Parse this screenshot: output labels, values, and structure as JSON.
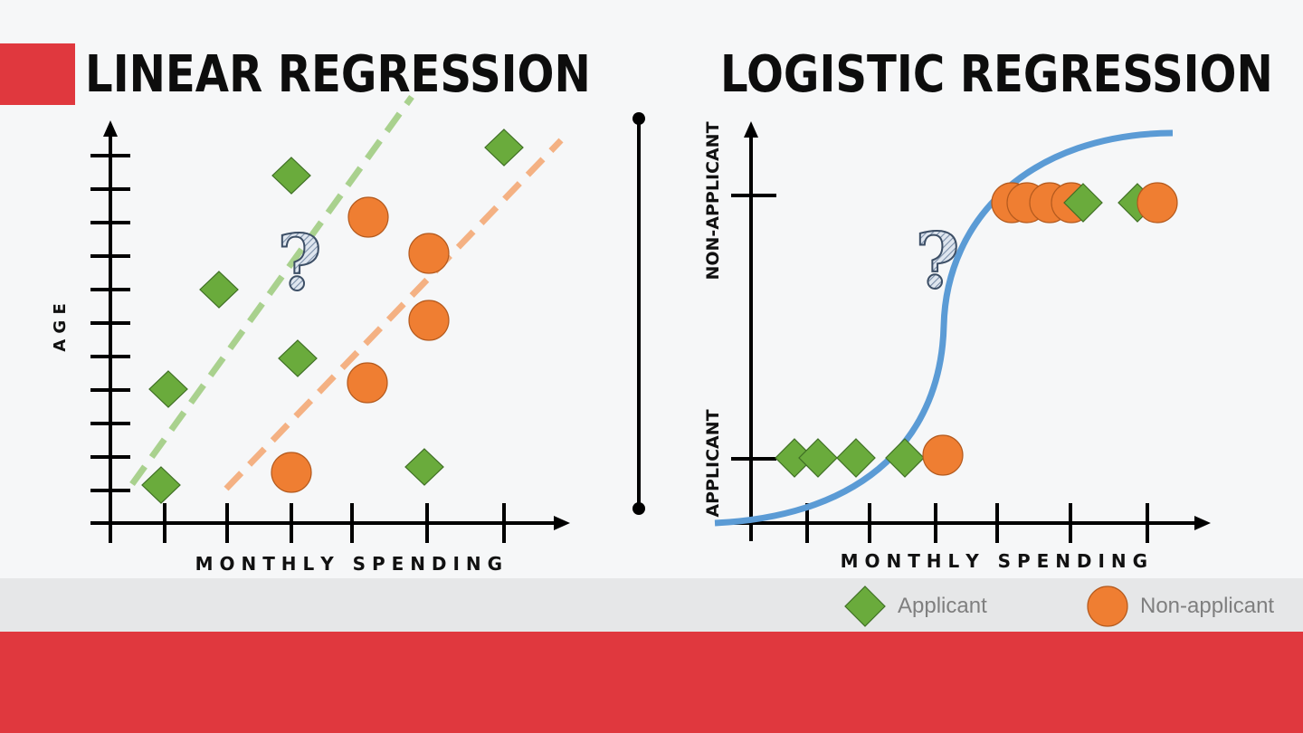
{
  "left_panel": {
    "title": "LINEAR REGRESSION",
    "x_axis_label": "M O N T H L Y   S P E N D I N G",
    "y_axis_label": "A G E",
    "question_mark": "?"
  },
  "right_panel": {
    "title": "LOGISTIC REGRESSION",
    "x_axis_label": "M O N T H L Y   S P E N D I N G",
    "y_tick_labels": [
      "NON-APPLICANT",
      "APPLICANT"
    ],
    "question_mark": "?"
  },
  "legend": {
    "applicant_label": "Applicant",
    "nonapplicant_label": "Non-applicant"
  },
  "colors": {
    "accent_red": "#e0383e",
    "applicant_green": "#6aab3c",
    "nonapplicant_orange": "#ef7e32",
    "curve_blue": "#5b9bd5",
    "green_dash": "#a9d18e",
    "orange_dash": "#f4b183"
  },
  "icons": [
    "diamond-marker-icon",
    "circle-marker-icon",
    "question-mark-icon"
  ]
}
